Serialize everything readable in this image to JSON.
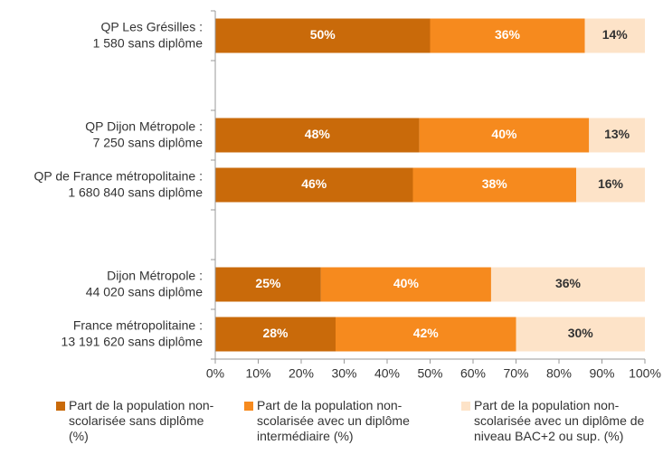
{
  "chart_data": {
    "type": "stacked-barh",
    "categories": [
      [
        "QP Les Grésilles :",
        "1 580 sans diplôme"
      ],
      null,
      [
        "QP Dijon Métropole :",
        "7 250 sans diplôme"
      ],
      [
        "QP de France métropolitaine :",
        "1 680 840 sans diplôme"
      ],
      null,
      [
        "Dijon Métropole :",
        "44 020 sans diplôme"
      ],
      [
        "France métropolitaine :",
        "13 191 620 sans diplôme"
      ]
    ],
    "series": [
      {
        "name": "Part de la population non-scolarisée sans diplôme (%)",
        "color": "#c96a0a",
        "label_color": "#ffffff",
        "values": [
          50,
          null,
          47.5,
          46,
          null,
          24.6,
          28
        ],
        "value_labels": [
          "50%",
          null,
          "48%",
          "46%",
          null,
          "25%",
          "28%"
        ]
      },
      {
        "name": "Part de la population non-scolarisée avec un diplôme intermédiaire (%)",
        "color": "#f68a1e",
        "label_color": "#ffffff",
        "values": [
          36,
          null,
          39.5,
          38,
          null,
          39.6,
          42
        ],
        "value_labels": [
          "36%",
          null,
          "40%",
          "38%",
          null,
          "40%",
          "42%"
        ]
      },
      {
        "name": "Part de la population non-scolarisée avec un diplôme de niveau BAC+2 ou sup. (%)",
        "color": "#fde3c8",
        "label_color": "#333333",
        "values": [
          14,
          null,
          13,
          16,
          null,
          35.8,
          30
        ],
        "value_labels": [
          "14%",
          null,
          "13%",
          "16%",
          null,
          "36%",
          "30%"
        ]
      }
    ],
    "xlim": [
      0,
      100
    ],
    "xticks": [
      {
        "value": 0,
        "label": "0%"
      },
      {
        "value": 10,
        "label": "10%"
      },
      {
        "value": 20,
        "label": "20%"
      },
      {
        "value": 30,
        "label": "30%"
      },
      {
        "value": 40,
        "label": "40%"
      },
      {
        "value": 50,
        "label": "50%"
      },
      {
        "value": 60,
        "label": "60%"
      },
      {
        "value": 70,
        "label": "70%"
      },
      {
        "value": 80,
        "label": "80%"
      },
      {
        "value": 90,
        "label": "90%"
      },
      {
        "value": 100,
        "label": "100%"
      }
    ],
    "legend": "bottom"
  }
}
